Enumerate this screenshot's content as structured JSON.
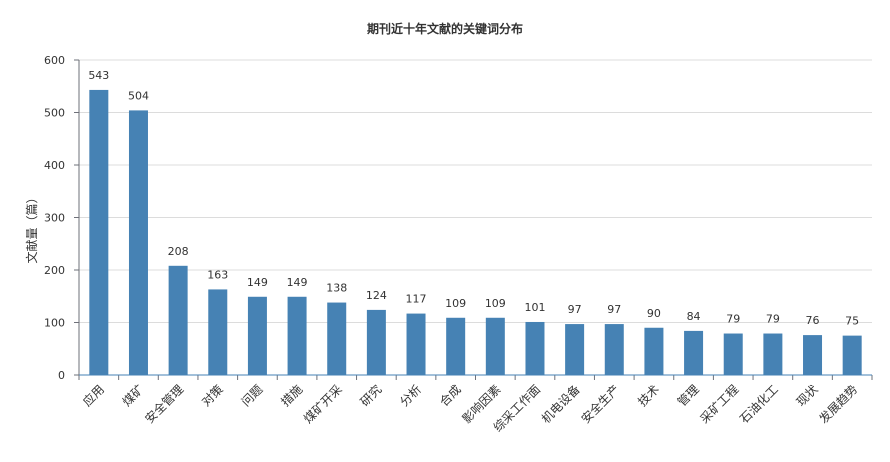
{
  "chart_data": {
    "type": "bar",
    "title": "期刊近十年文献的关键词分布",
    "xlabel": "",
    "ylabel": "文献量（篇）",
    "ylim": [
      0,
      600
    ],
    "yticks": [
      0,
      100,
      200,
      300,
      400,
      500,
      600
    ],
    "grid": true,
    "bar_color": "#4682b4",
    "categories": [
      "应用",
      "煤矿",
      "安全管理",
      "对策",
      "问题",
      "措施",
      "煤矿开采",
      "研究",
      "分析",
      "合成",
      "影响因素",
      "综采工作面",
      "机电设备",
      "安全生产",
      "技术",
      "管理",
      "采矿工程",
      "石油化工",
      "现状",
      "发展趋势"
    ],
    "values": [
      543,
      504,
      208,
      163,
      149,
      149,
      138,
      124,
      117,
      109,
      109,
      101,
      97,
      97,
      90,
      84,
      79,
      79,
      76,
      75
    ]
  }
}
